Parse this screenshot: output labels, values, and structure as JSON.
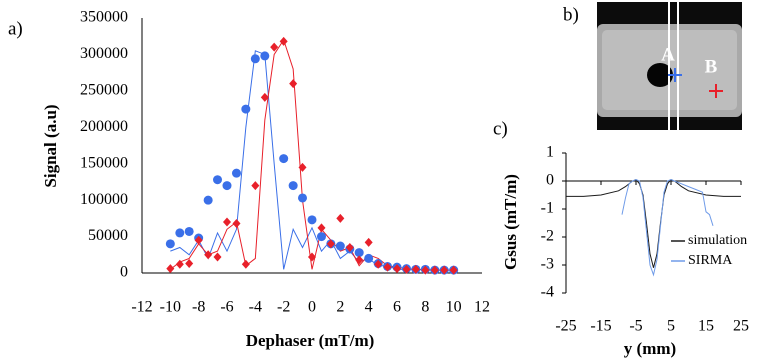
{
  "chart_data": [
    {
      "type": "scatter",
      "label": "a)",
      "x_label": "Dephaser (mT/m)",
      "y_label": "Signal (a.u)",
      "x": [
        -10,
        -9.33,
        -8.67,
        -8,
        -7.33,
        -6.67,
        -6,
        -5.33,
        -4.67,
        -4,
        -3.33,
        -2.67,
        -2,
        -1.33,
        -0.67,
        0,
        0.67,
        1.33,
        2,
        2.67,
        3.33,
        4,
        4.67,
        5.33,
        6,
        6.67,
        7.33,
        8,
        8.67,
        9.33,
        10
      ],
      "xlim": [
        -12,
        12
      ],
      "xticks": [
        -12,
        -10,
        -8,
        -6,
        -4,
        -2,
        0,
        2,
        4,
        6,
        8,
        10,
        12
      ],
      "ylim": [
        0,
        350000
      ],
      "yticks": [
        0,
        50000,
        100000,
        150000,
        200000,
        250000,
        300000,
        350000
      ],
      "series": [
        {
          "color": "#3a6fe8",
          "style": "line",
          "values": [
            30000,
            35000,
            25000,
            45000,
            20000,
            55000,
            30000,
            60000,
            200000,
            305000,
            300000,
            150000,
            5000,
            60000,
            35000,
            62000,
            30000,
            45000,
            20000,
            30000,
            15000,
            20000,
            10000,
            10000,
            5000,
            5000,
            5000,
            4000,
            4000,
            4000,
            4000
          ]
        },
        {
          "color": "#e8202a",
          "style": "line",
          "values": [
            5000,
            15000,
            20000,
            40000,
            25000,
            30000,
            60000,
            70000,
            10000,
            20000,
            210000,
            300000,
            320000,
            280000,
            100000,
            5000,
            60000,
            45000,
            30000,
            35000,
            10000,
            25000,
            20000,
            10000,
            8000,
            6000,
            5000,
            5000,
            4000,
            4000,
            4000
          ]
        },
        {
          "color": "#3a6fe8",
          "style": "markers",
          "marker": "circle",
          "values": [
            40000,
            55000,
            57000,
            48000,
            100000,
            128000,
            120000,
            137000,
            225000,
            294000,
            298000,
            null,
            157000,
            120000,
            103000,
            73000,
            50000,
            40000,
            37000,
            33000,
            28000,
            20000,
            13000,
            9000,
            8000,
            6000,
            5000,
            5000,
            4000,
            4000,
            4000
          ]
        },
        {
          "color": "#e8202a",
          "style": "markers",
          "marker": "diamond",
          "values": [
            6000,
            12000,
            13000,
            45000,
            25000,
            22000,
            70000,
            68000,
            12000,
            120000,
            241000,
            310000,
            318000,
            260000,
            145000,
            22000,
            62000,
            40000,
            75000,
            35000,
            18000,
            42000,
            12000,
            8000,
            6000,
            5000,
            5000,
            4000,
            4000,
            4000,
            4000
          ]
        }
      ]
    },
    {
      "type": "line",
      "label": "c)",
      "x_label": "y (mm)",
      "y_label": "Gsus (mT/m)",
      "legend": "lower right",
      "xlim": [
        -25,
        25
      ],
      "xticks": [
        -25,
        -15,
        -5,
        5,
        15,
        25
      ],
      "ylim": [
        -4,
        1
      ],
      "yticks": [
        -4,
        -3,
        -2,
        -1,
        0,
        1
      ],
      "series": [
        {
          "name": "simulation",
          "color": "#1a1a1a",
          "x": [
            -25,
            -20,
            -15,
            -10,
            -8,
            -6,
            -5,
            -4,
            -3,
            -2,
            -1,
            0,
            1,
            2,
            3,
            4,
            5,
            6,
            8,
            10,
            15,
            20,
            25
          ],
          "values": [
            -0.55,
            -0.55,
            -0.5,
            -0.35,
            -0.2,
            0,
            0.05,
            -0.1,
            -0.5,
            -1.5,
            -2.6,
            -3.1,
            -2.6,
            -1.5,
            -0.5,
            -0.1,
            0.05,
            0,
            -0.2,
            -0.35,
            -0.5,
            -0.55,
            -0.55
          ]
        },
        {
          "name": "SIRMA",
          "color": "#6f9be8",
          "x": [
            -9,
            -8,
            -7,
            -6,
            -5,
            -4,
            -3,
            -2,
            -1,
            0,
            1,
            2,
            3,
            4,
            5,
            6,
            8,
            10,
            12,
            14,
            15,
            16,
            17
          ],
          "values": [
            -1.2,
            -0.6,
            -0.1,
            0,
            0.05,
            0,
            -0.6,
            -1.8,
            -3.0,
            -3.35,
            -2.8,
            -1.6,
            -0.4,
            0,
            0.05,
            0,
            -0.1,
            -0.2,
            -0.3,
            -0.4,
            -1.1,
            -1.2,
            -1.6
          ]
        }
      ]
    }
  ],
  "image_panel": {
    "label": "b)",
    "markers": [
      "A",
      "B"
    ]
  }
}
